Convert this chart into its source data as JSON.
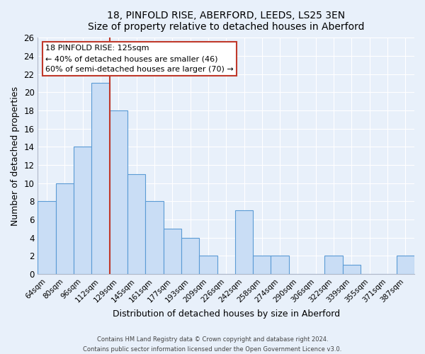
{
  "title": "18, PINFOLD RISE, ABERFORD, LEEDS, LS25 3EN",
  "subtitle": "Size of property relative to detached houses in Aberford",
  "xlabel": "Distribution of detached houses by size in Aberford",
  "ylabel": "Number of detached properties",
  "categories": [
    "64sqm",
    "80sqm",
    "96sqm",
    "112sqm",
    "129sqm",
    "145sqm",
    "161sqm",
    "177sqm",
    "193sqm",
    "209sqm",
    "226sqm",
    "242sqm",
    "258sqm",
    "274sqm",
    "290sqm",
    "306sqm",
    "322sqm",
    "339sqm",
    "355sqm",
    "371sqm",
    "387sqm"
  ],
  "values": [
    8,
    10,
    14,
    21,
    18,
    11,
    8,
    5,
    4,
    2,
    0,
    7,
    2,
    2,
    0,
    0,
    2,
    1,
    0,
    0,
    2
  ],
  "bar_color": "#c9ddf5",
  "bar_edge_color": "#5b9bd5",
  "vline_color": "#c0392b",
  "annotation_title": "18 PINFOLD RISE: 125sqm",
  "annotation_line1": "← 40% of detached houses are smaller (46)",
  "annotation_line2": "60% of semi-detached houses are larger (70) →",
  "annotation_box_color": "white",
  "annotation_box_edge": "#c0392b",
  "ylim": [
    0,
    26
  ],
  "yticks": [
    0,
    2,
    4,
    6,
    8,
    10,
    12,
    14,
    16,
    18,
    20,
    22,
    24,
    26
  ],
  "footer1": "Contains HM Land Registry data © Crown copyright and database right 2024.",
  "footer2": "Contains public sector information licensed under the Open Government Licence v3.0.",
  "bg_color": "#e8f0fa",
  "grid_color": "#ffffff",
  "spine_color": "#b0b8c8"
}
